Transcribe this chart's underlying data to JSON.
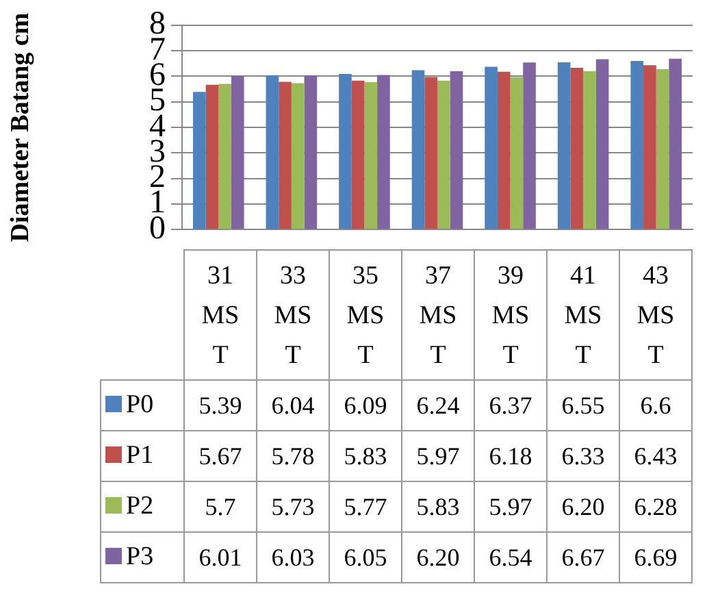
{
  "chart_data": {
    "type": "bar",
    "ylabel": "Diameter Batang cm",
    "categories": [
      "31 MST",
      "33 MST",
      "35 MST",
      "37 MST",
      "39 MST",
      "41 MST",
      "43 MST"
    ],
    "series": [
      {
        "name": "P0",
        "color": "#4f81bd",
        "values": [
          5.39,
          6.04,
          6.09,
          6.24,
          6.37,
          6.55,
          6.6
        ],
        "value_labels": [
          "5.39",
          "6.04",
          "6.09",
          "6.24",
          "6.37",
          "6.55",
          "6.6"
        ]
      },
      {
        "name": "P1",
        "color": "#c0504d",
        "values": [
          5.67,
          5.78,
          5.83,
          5.97,
          6.18,
          6.33,
          6.43
        ],
        "value_labels": [
          "5.67",
          "5.78",
          "5.83",
          "5.97",
          "6.18",
          "6.33",
          "6.43"
        ]
      },
      {
        "name": "P2",
        "color": "#9bbb59",
        "values": [
          5.7,
          5.73,
          5.77,
          5.83,
          5.97,
          6.2,
          6.28
        ],
        "value_labels": [
          "5.7",
          "5.73",
          "5.77",
          "5.83",
          "5.97",
          "6.20",
          "6.28"
        ]
      },
      {
        "name": "P3",
        "color": "#8064a2",
        "values": [
          6.01,
          6.03,
          6.05,
          6.2,
          6.54,
          6.67,
          6.69
        ],
        "value_labels": [
          "6.01",
          "6.03",
          "6.05",
          "6.20",
          "6.54",
          "6.67",
          "6.69"
        ]
      }
    ],
    "ylim": [
      0,
      8
    ],
    "yticks": [
      0,
      1,
      2,
      3,
      4,
      5,
      6,
      7,
      8
    ],
    "grid": "y",
    "legend": "bottom"
  }
}
